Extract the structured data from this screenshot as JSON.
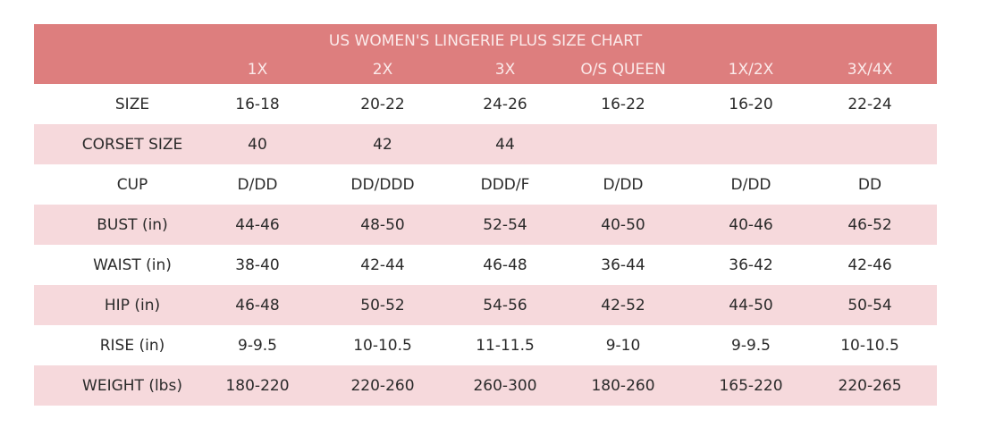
{
  "title": "US WOMEN'S LINGERIE PLUS SIZE CHART",
  "columns": [
    "1X",
    "2X",
    "3X",
    "O/S QUEEN",
    "1X/2X",
    "3X/4X"
  ],
  "rows": [
    {
      "label": "SIZE",
      "values": [
        "16-18",
        "20-22",
        "24-26",
        "16-22",
        "16-20",
        "22-24"
      ]
    },
    {
      "label": "CORSET SIZE",
      "values": [
        "40",
        "42",
        "44",
        "",
        "",
        ""
      ]
    },
    {
      "label": "CUP",
      "values": [
        "D/DD",
        "DD/DDD",
        "DDD/F",
        "D/DD",
        "D/DD",
        "DD"
      ]
    },
    {
      "label": "BUST (in)",
      "values": [
        "44-46",
        "48-50",
        "52-54",
        "40-50",
        "40-46",
        "46-52"
      ]
    },
    {
      "label": "WAIST (in)",
      "values": [
        "38-40",
        "42-44",
        "46-48",
        "36-44",
        "36-42",
        "42-46"
      ]
    },
    {
      "label": "HIP (in)",
      "values": [
        "46-48",
        "50-52",
        "54-56",
        "42-52",
        "44-50",
        "50-54"
      ]
    },
    {
      "label": "RISE (in)",
      "values": [
        "9-9.5",
        "10-10.5",
        "11-11.5",
        "9-10",
        "9-9.5",
        "10-10.5"
      ]
    },
    {
      "label": "WEIGHT (lbs)",
      "values": [
        "180-220",
        "220-260",
        "260-300",
        "180-260",
        "165-220",
        "220-265"
      ]
    }
  ],
  "colors": {
    "header": "#dd7e7e",
    "alt_row": "#f6d9dc"
  }
}
